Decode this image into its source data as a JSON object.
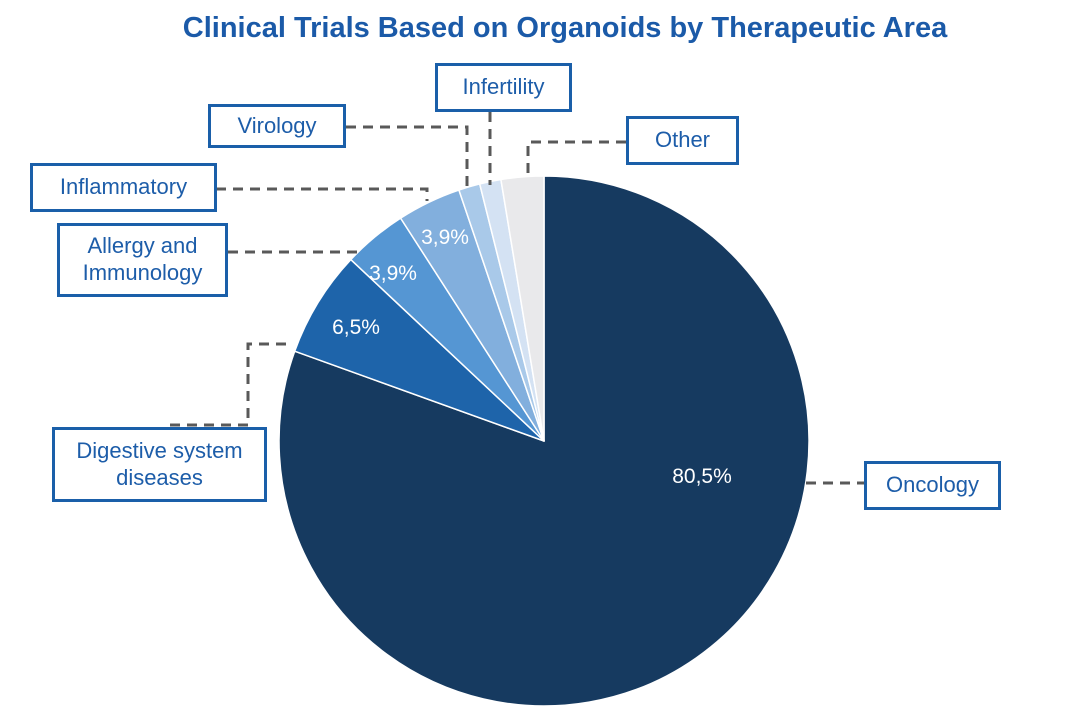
{
  "chart_data": {
    "type": "pie",
    "title": "Clinical Trials Based on Organoids by Therapeutic Area",
    "start_angle_deg": 0,
    "direction": "clockwise",
    "value_unit": "percent",
    "decimal_separator": ",",
    "legend_position": "callout-boxes-with-dashed-leader-lines",
    "slices": [
      {
        "name": "Oncology",
        "value": 80.5,
        "display_label": "80,5%",
        "color": "#163a60"
      },
      {
        "name": "Digestive system diseases",
        "value": 6.5,
        "display_label": "6,5%",
        "color": "#1e64aa"
      },
      {
        "name": "Allergy and Immunology",
        "value": 3.9,
        "display_label": "3,9%",
        "color": "#5596d3"
      },
      {
        "name": "Inflammatory",
        "value": 3.9,
        "display_label": "3,9%",
        "color": "#82afdd"
      },
      {
        "name": "Virology",
        "value": 1.3,
        "display_label": "",
        "color": "#a9c9e9"
      },
      {
        "name": "Infertility",
        "value": 1.3,
        "display_label": "",
        "color": "#d4e2f3"
      },
      {
        "name": "Other",
        "value": 2.6,
        "display_label": "",
        "color": "#e9e9eb"
      }
    ]
  },
  "styles": {
    "title_color": "#1b5aa8",
    "callout_border_color": "#1a5fa9",
    "callout_text_color": "#1d5da9",
    "connector_color": "#595959",
    "percent_label_color": "#ffffff",
    "background": "#ffffff"
  }
}
